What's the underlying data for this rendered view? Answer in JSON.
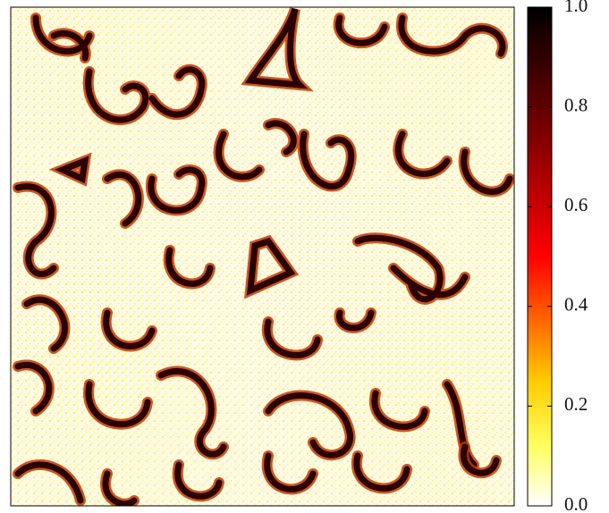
{
  "chart_data": {
    "type": "heatmap",
    "colormap": "hot_r",
    "clim": [
      0,
      1
    ],
    "cticks": [
      {
        "value": 0,
        "label": "0.0"
      },
      0.2,
      0.4,
      0.6,
      0.8,
      {
        "value": 1,
        "label": "1.0"
      }
    ]
  }
}
